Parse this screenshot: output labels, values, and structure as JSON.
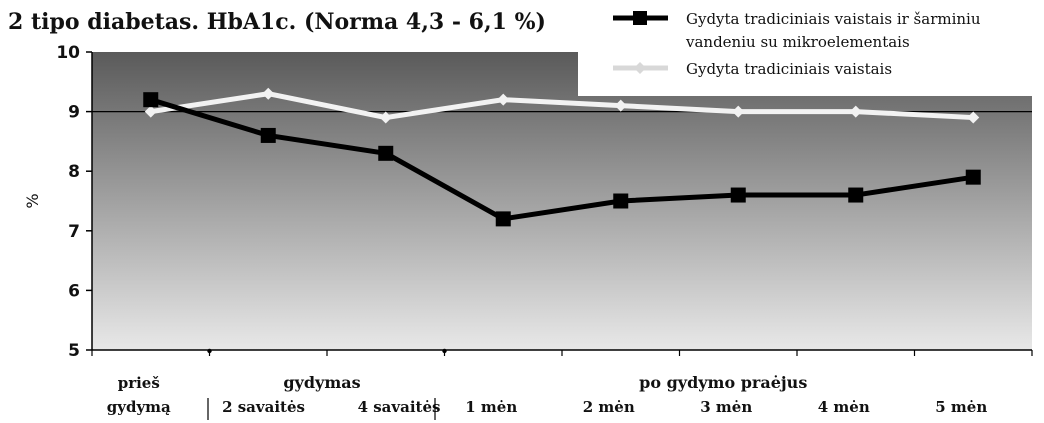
{
  "chart_data": {
    "type": "line",
    "title": "2 tipo diabetas. HbA1c. (Norma 4,3 - 6,1 %)",
    "ylabel": "%",
    "xlabel": "",
    "ylim": [
      5,
      10
    ],
    "yticks": [
      "5",
      "6",
      "7",
      "8",
      "9",
      "10"
    ],
    "reference_line": 9,
    "categories": [
      "prieš gydymą",
      "2 savaitės",
      "4 savaitės",
      "1 mėn",
      "2 mėn",
      "3 mėn",
      "4 mėn",
      "5 mėn"
    ],
    "category_labels": [
      {
        "lines": [
          "prieš",
          "gydymą"
        ]
      },
      {
        "lines": [
          "",
          "2 savaitės"
        ]
      },
      {
        "lines": [
          "",
          "4 savaitės"
        ]
      },
      {
        "lines": [
          "",
          "1 mėn"
        ]
      },
      {
        "lines": [
          "",
          "2 mėn"
        ]
      },
      {
        "lines": [
          "",
          "3 mėn"
        ]
      },
      {
        "lines": [
          "",
          "4 mėn"
        ]
      },
      {
        "lines": [
          "",
          "5 mėn"
        ]
      }
    ],
    "groups": [
      {
        "label": "gydymas",
        "from": 1,
        "to": 2
      },
      {
        "label": "po gydymo praėjus",
        "from": 3,
        "to": 7
      }
    ],
    "series": [
      {
        "name": "Gydyta tradiciniais vaistais ir šarminiu vandeniu su mikroelementais",
        "legend_lines": [
          "Gydyta tradiciniais vaistais ir šarminiu",
          "vandeniu su mikroelementais"
        ],
        "values": [
          9.2,
          8.6,
          8.3,
          7.2,
          7.5,
          7.6,
          7.6,
          7.9
        ],
        "color": "#000000",
        "marker": "square"
      },
      {
        "name": "Gydyta tradiciniais vaistais",
        "legend_lines": [
          "Gydyta tradiciniais vaistais"
        ],
        "values": [
          9.0,
          9.3,
          8.9,
          9.2,
          9.1,
          9.0,
          9.0,
          8.9
        ],
        "color": "#f2f2f2",
        "marker": "diamond"
      }
    ],
    "legend_position": "top-right",
    "grid": false,
    "background": {
      "top": "#5a5a5a",
      "bottom": "#e8e8e8"
    }
  }
}
